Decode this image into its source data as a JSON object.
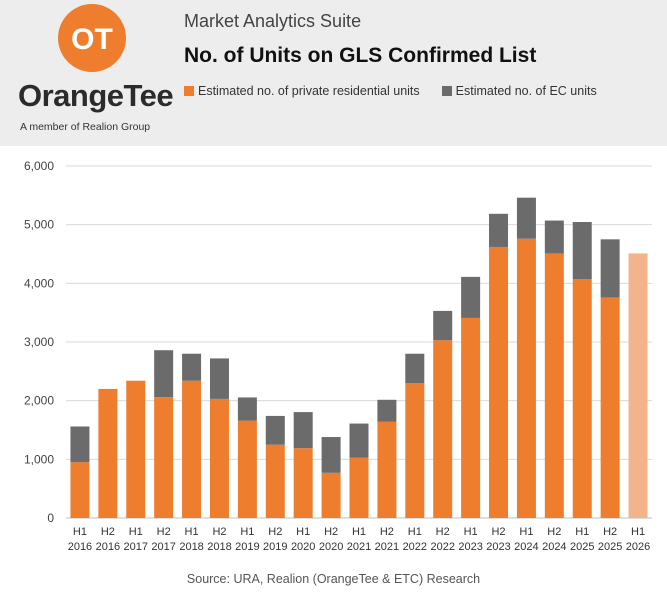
{
  "header": {
    "suite": "Market Analytics Suite",
    "title": "No. of Units on GLS Confirmed List",
    "logo_text_part1": "Orange",
    "logo_text_part2": "Tee",
    "logo_monogram": "OT",
    "member": "A member of Realion Group"
  },
  "legend": {
    "private": "Estimated no. of private residential units",
    "ec": "Estimated no. of EC units"
  },
  "colors": {
    "private": "#ef7d2e",
    "private_latest": "#f4b48b",
    "ec": "#6b6b6b",
    "grid": "#d9d9d9"
  },
  "source": "Source: URA, Realion (OrangeTee & ETC) Research",
  "chart_data": {
    "type": "bar",
    "stacked": true,
    "title": "No. of Units on GLS Confirmed List",
    "xlabel": "",
    "ylabel": "",
    "ylim": [
      0,
      6000
    ],
    "yticks": [
      0,
      1000,
      2000,
      3000,
      4000,
      5000,
      6000
    ],
    "ytick_labels": [
      "0",
      "1,000",
      "2,000",
      "3,000",
      "4,000",
      "5,000",
      "6,000"
    ],
    "grid": true,
    "categories": [
      {
        "half": "H1",
        "year": "2016"
      },
      {
        "half": "H2",
        "year": "2016"
      },
      {
        "half": "H1",
        "year": "2017"
      },
      {
        "half": "H2",
        "year": "2017"
      },
      {
        "half": "H1",
        "year": "2018"
      },
      {
        "half": "H2",
        "year": "2018"
      },
      {
        "half": "H1",
        "year": "2019"
      },
      {
        "half": "H2",
        "year": "2019"
      },
      {
        "half": "H1",
        "year": "2020"
      },
      {
        "half": "H2",
        "year": "2020"
      },
      {
        "half": "H1",
        "year": "2021"
      },
      {
        "half": "H2",
        "year": "2021"
      },
      {
        "half": "H1",
        "year": "2022"
      },
      {
        "half": "H2",
        "year": "2022"
      },
      {
        "half": "H1",
        "year": "2023"
      },
      {
        "half": "H2",
        "year": "2023"
      },
      {
        "half": "H1",
        "year": "2024"
      },
      {
        "half": "H2",
        "year": "2024"
      },
      {
        "half": "H1",
        "year": "2025"
      },
      {
        "half": "H2",
        "year": "2025"
      },
      {
        "half": "H1",
        "year": "2026"
      }
    ],
    "series": [
      {
        "name": "Estimated no. of private residential units",
        "values": [
          950,
          2200,
          2340,
          2060,
          2340,
          2030,
          1660,
          1250,
          1190,
          770,
          1030,
          1640,
          2300,
          3030,
          3410,
          4620,
          4760,
          4510,
          4070,
          3760,
          4510
        ]
      },
      {
        "name": "Estimated no. of EC units",
        "values": [
          610,
          0,
          0,
          800,
          460,
          690,
          395,
          490,
          615,
          610,
          580,
          375,
          500,
          500,
          700,
          565,
          700,
          560,
          975,
          990,
          0
        ]
      }
    ]
  }
}
